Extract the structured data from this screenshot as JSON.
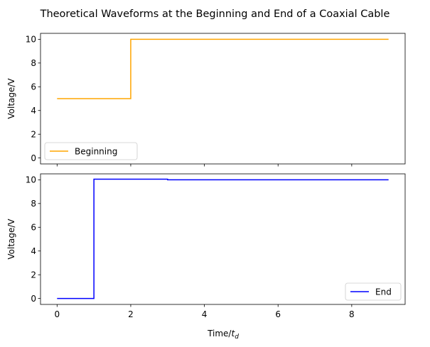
{
  "chart_data": [
    {
      "type": "line",
      "title": "Theoretical Waveforms at the Beginning and End of a Coaxial Cable",
      "xlabel": "",
      "ylabel": "Voltage/V",
      "xlim": [
        -0.45,
        9.45
      ],
      "ylim": [
        -0.5,
        10.5
      ],
      "xticks": [
        0,
        2,
        4,
        6,
        8
      ],
      "xtick_labels_visible": false,
      "yticks": [
        0,
        2,
        4,
        6,
        8,
        10
      ],
      "ytick_labels": [
        "0",
        "2",
        "4",
        "6",
        "8",
        "10"
      ],
      "grid": false,
      "legend": {
        "placement": "lower-left"
      },
      "series": [
        {
          "name": "Beginning",
          "color": "#ffa500",
          "x": [
            0,
            2,
            2,
            9
          ],
          "y": [
            5,
            5,
            10,
            10
          ]
        }
      ]
    },
    {
      "type": "line",
      "title": "",
      "xlabel": "Time/t_d",
      "ylabel": "Voltage/V",
      "xlim": [
        -0.45,
        9.45
      ],
      "ylim": [
        -0.5,
        10.5
      ],
      "xticks": [
        0,
        2,
        4,
        6,
        8
      ],
      "xtick_labels": [
        "0",
        "2",
        "4",
        "6",
        "8"
      ],
      "yticks": [
        0,
        2,
        4,
        6,
        8,
        10
      ],
      "ytick_labels": [
        "0",
        "2",
        "4",
        "6",
        "8",
        "10"
      ],
      "grid": false,
      "legend": {
        "placement": "lower-right"
      },
      "series": [
        {
          "name": "End",
          "color": "#0000ff",
          "x": [
            0,
            1,
            1,
            3,
            3,
            9
          ],
          "y": [
            0,
            0,
            10.05,
            10.05,
            10.0,
            10.0
          ]
        }
      ]
    }
  ],
  "figure": {
    "title": "Theoretical Waveforms at the Beginning and End of a Coaxial Cable",
    "xlabel_main": "Time/",
    "xlabel_sub": "d",
    "xlabel_italic": "t"
  }
}
